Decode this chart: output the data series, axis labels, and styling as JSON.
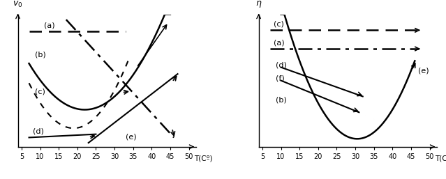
{
  "left_ylabel": "$v_0$",
  "right_ylabel": "$\\eta$",
  "xlabel": "T(Cº)",
  "xticks": [
    5,
    10,
    15,
    20,
    25,
    30,
    35,
    40,
    45,
    50
  ],
  "figsize": [
    6.39,
    2.57
  ],
  "dpi": 100,
  "bg_color": "white"
}
